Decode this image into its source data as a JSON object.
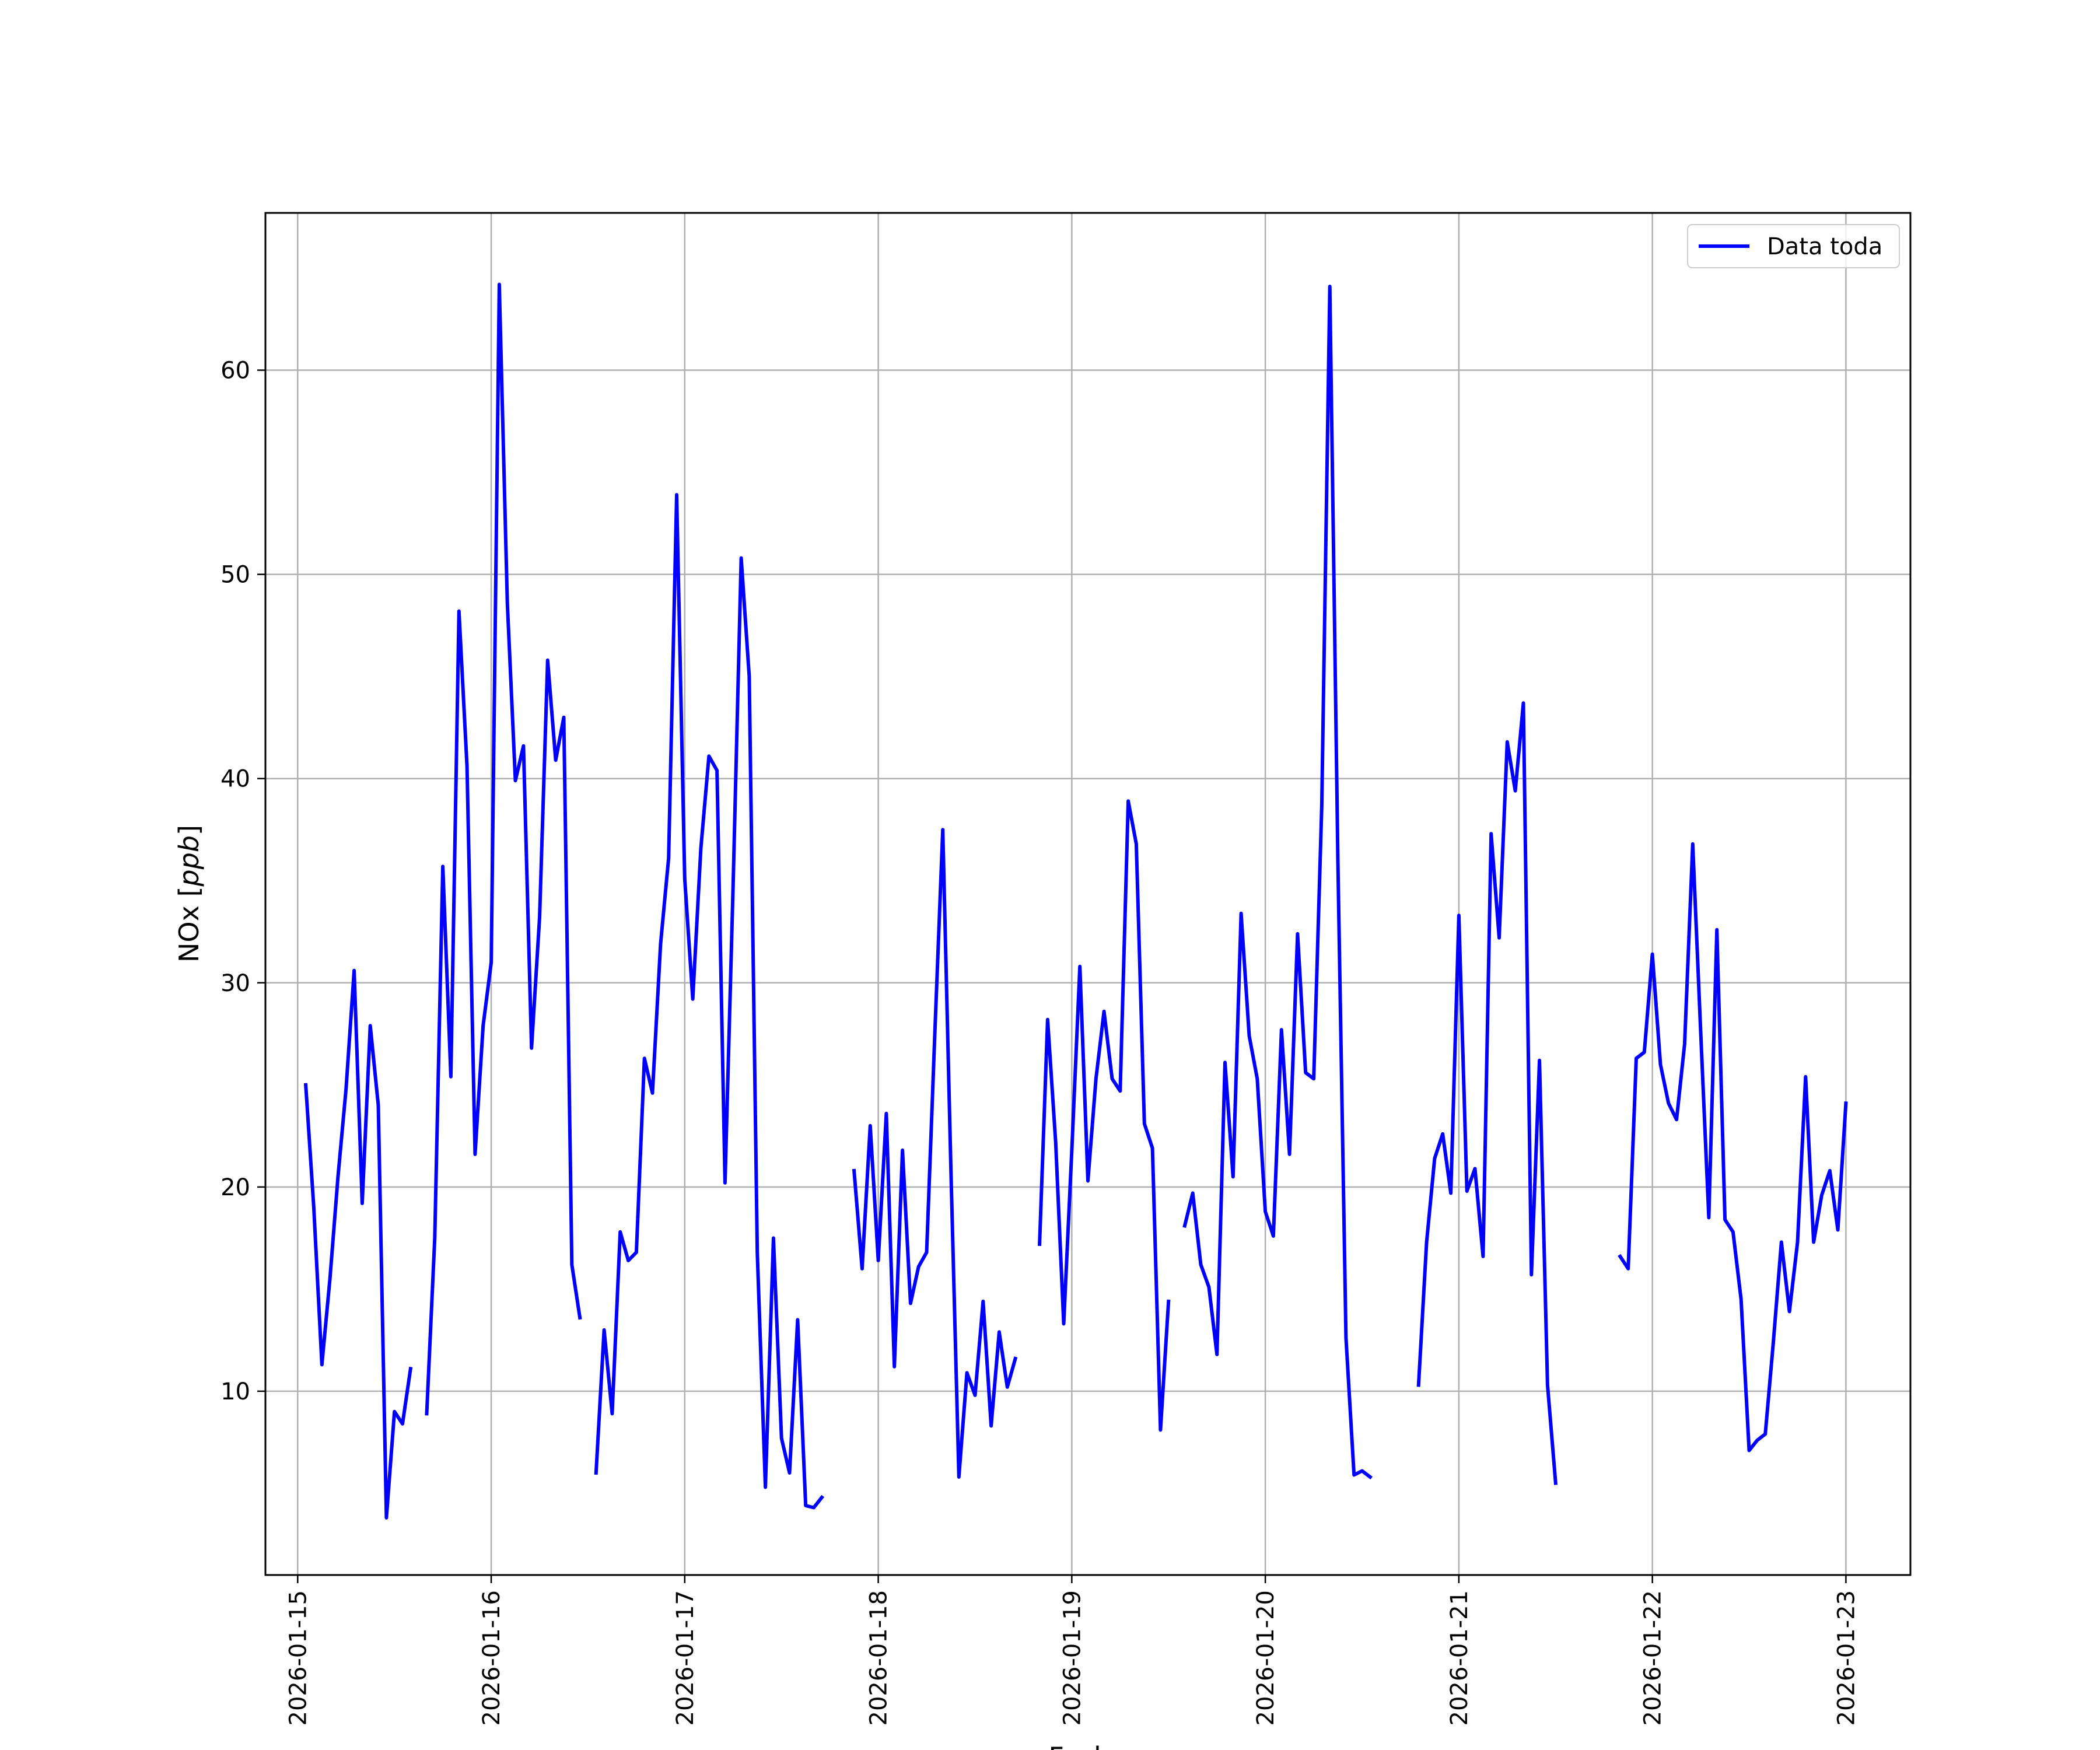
{
  "chart_data": {
    "type": "line",
    "xlabel": "Fecha",
    "ylabel_prefix": "NOx [",
    "ylabel_unit": "ppb",
    "ylabel_suffix": "]",
    "x_tick_labels": [
      "2026-01-15",
      "2026-01-16",
      "2026-01-17",
      "2026-01-18",
      "2026-01-19",
      "2026-01-20",
      "2026-01-21",
      "2026-01-22",
      "2026-01-23"
    ],
    "y_ticks": [
      10,
      20,
      30,
      40,
      50,
      60
    ],
    "xlim": [
      "2026-01-14 20:00",
      "2026-01-23 08:00"
    ],
    "ylim": [
      1.0,
      67.7
    ],
    "grid": true,
    "legend_position": "top-right",
    "colors": {
      "series": "#0000ff",
      "grid": "#b0b0b0",
      "axes": "#000000"
    },
    "series": [
      {
        "name": "Data toda",
        "points": [
          [
            "2026-01-15 01:00",
            25.0
          ],
          [
            "2026-01-15 02:00",
            19.0
          ],
          [
            "2026-01-15 03:00",
            11.3
          ],
          [
            "2026-01-15 04:00",
            15.5
          ],
          [
            "2026-01-15 05:00",
            20.5
          ],
          [
            "2026-01-15 06:00",
            24.8
          ],
          [
            "2026-01-15 07:00",
            30.6
          ],
          [
            "2026-01-15 08:00",
            19.2
          ],
          [
            "2026-01-15 09:00",
            27.9
          ],
          [
            "2026-01-15 10:00",
            24.0
          ],
          [
            "2026-01-15 11:00",
            3.8
          ],
          [
            "2026-01-15 12:00",
            9.0
          ],
          [
            "2026-01-15 13:00",
            8.4
          ],
          [
            "2026-01-15 14:00",
            11.1
          ],
          [
            "2026-01-15 15:00",
            null
          ],
          [
            "2026-01-15 16:00",
            8.9
          ],
          [
            "2026-01-15 17:00",
            17.5
          ],
          [
            "2026-01-15 18:00",
            35.7
          ],
          [
            "2026-01-15 19:00",
            25.4
          ],
          [
            "2026-01-15 20:00",
            48.2
          ],
          [
            "2026-01-15 21:00",
            40.6
          ],
          [
            "2026-01-15 22:00",
            21.6
          ],
          [
            "2026-01-15 23:00",
            27.9
          ],
          [
            "2026-01-16 00:00",
            31.0
          ],
          [
            "2026-01-16 01:00",
            64.2
          ],
          [
            "2026-01-16 02:00",
            48.6
          ],
          [
            "2026-01-16 03:00",
            39.9
          ],
          [
            "2026-01-16 04:00",
            41.6
          ],
          [
            "2026-01-16 05:00",
            26.8
          ],
          [
            "2026-01-16 06:00",
            33.2
          ],
          [
            "2026-01-16 07:00",
            45.8
          ],
          [
            "2026-01-16 08:00",
            40.9
          ],
          [
            "2026-01-16 09:00",
            43.0
          ],
          [
            "2026-01-16 10:00",
            16.2
          ],
          [
            "2026-01-16 11:00",
            13.6
          ],
          [
            "2026-01-16 12:00",
            null
          ],
          [
            "2026-01-16 13:00",
            6.0
          ],
          [
            "2026-01-16 14:00",
            13.0
          ],
          [
            "2026-01-16 15:00",
            8.9
          ],
          [
            "2026-01-16 16:00",
            17.8
          ],
          [
            "2026-01-16 17:00",
            16.4
          ],
          [
            "2026-01-16 18:00",
            16.8
          ],
          [
            "2026-01-16 19:00",
            26.3
          ],
          [
            "2026-01-16 20:00",
            24.6
          ],
          [
            "2026-01-16 21:00",
            31.9
          ],
          [
            "2026-01-16 22:00",
            36.1
          ],
          [
            "2026-01-16 23:00",
            53.9
          ],
          [
            "2026-01-17 00:00",
            35.1
          ],
          [
            "2026-01-17 01:00",
            29.2
          ],
          [
            "2026-01-17 02:00",
            36.6
          ],
          [
            "2026-01-17 03:00",
            41.1
          ],
          [
            "2026-01-17 04:00",
            40.4
          ],
          [
            "2026-01-17 05:00",
            20.2
          ],
          [
            "2026-01-17 06:00",
            34.8
          ],
          [
            "2026-01-17 07:00",
            50.8
          ],
          [
            "2026-01-17 08:00",
            45.0
          ],
          [
            "2026-01-17 09:00",
            16.8
          ],
          [
            "2026-01-17 10:00",
            5.3
          ],
          [
            "2026-01-17 11:00",
            17.5
          ],
          [
            "2026-01-17 12:00",
            7.7
          ],
          [
            "2026-01-17 13:00",
            6.0
          ],
          [
            "2026-01-17 14:00",
            13.5
          ],
          [
            "2026-01-17 15:00",
            4.4
          ],
          [
            "2026-01-17 16:00",
            4.3
          ],
          [
            "2026-01-17 17:00",
            4.8
          ],
          [
            "2026-01-17 18:00",
            null
          ],
          [
            "2026-01-17 19:00",
            null
          ],
          [
            "2026-01-17 20:00",
            null
          ],
          [
            "2026-01-17 21:00",
            20.8
          ],
          [
            "2026-01-17 22:00",
            16.0
          ],
          [
            "2026-01-17 23:00",
            23.0
          ],
          [
            "2026-01-18 00:00",
            16.4
          ],
          [
            "2026-01-18 01:00",
            23.6
          ],
          [
            "2026-01-18 02:00",
            11.2
          ],
          [
            "2026-01-18 03:00",
            21.8
          ],
          [
            "2026-01-18 04:00",
            14.3
          ],
          [
            "2026-01-18 05:00",
            16.1
          ],
          [
            "2026-01-18 06:00",
            16.8
          ],
          [
            "2026-01-18 07:00",
            27.4
          ],
          [
            "2026-01-18 08:00",
            37.5
          ],
          [
            "2026-01-18 09:00",
            21.0
          ],
          [
            "2026-01-18 10:00",
            5.8
          ],
          [
            "2026-01-18 11:00",
            10.9
          ],
          [
            "2026-01-18 12:00",
            9.8
          ],
          [
            "2026-01-18 13:00",
            14.4
          ],
          [
            "2026-01-18 14:00",
            8.3
          ],
          [
            "2026-01-18 15:00",
            12.9
          ],
          [
            "2026-01-18 16:00",
            10.2
          ],
          [
            "2026-01-18 17:00",
            11.6
          ],
          [
            "2026-01-18 18:00",
            null
          ],
          [
            "2026-01-18 19:00",
            null
          ],
          [
            "2026-01-18 20:00",
            17.2
          ],
          [
            "2026-01-18 21:00",
            28.2
          ],
          [
            "2026-01-18 22:00",
            22.2
          ],
          [
            "2026-01-18 23:00",
            13.3
          ],
          [
            "2026-01-19 00:00",
            21.8
          ],
          [
            "2026-01-19 01:00",
            30.8
          ],
          [
            "2026-01-19 02:00",
            20.3
          ],
          [
            "2026-01-19 03:00",
            25.3
          ],
          [
            "2026-01-19 04:00",
            28.6
          ],
          [
            "2026-01-19 05:00",
            25.3
          ],
          [
            "2026-01-19 06:00",
            24.7
          ],
          [
            "2026-01-19 07:00",
            38.9
          ],
          [
            "2026-01-19 08:00",
            36.8
          ],
          [
            "2026-01-19 09:00",
            23.1
          ],
          [
            "2026-01-19 10:00",
            21.9
          ],
          [
            "2026-01-19 11:00",
            8.1
          ],
          [
            "2026-01-19 12:00",
            14.4
          ],
          [
            "2026-01-19 13:00",
            null
          ],
          [
            "2026-01-19 14:00",
            18.1
          ],
          [
            "2026-01-19 15:00",
            19.7
          ],
          [
            "2026-01-19 16:00",
            16.2
          ],
          [
            "2026-01-19 17:00",
            15.1
          ],
          [
            "2026-01-19 18:00",
            11.8
          ],
          [
            "2026-01-19 19:00",
            26.1
          ],
          [
            "2026-01-19 20:00",
            20.5
          ],
          [
            "2026-01-19 21:00",
            33.4
          ],
          [
            "2026-01-19 22:00",
            27.4
          ],
          [
            "2026-01-19 23:00",
            25.3
          ],
          [
            "2026-01-20 00:00",
            18.8
          ],
          [
            "2026-01-20 01:00",
            17.6
          ],
          [
            "2026-01-20 02:00",
            27.7
          ],
          [
            "2026-01-20 03:00",
            21.6
          ],
          [
            "2026-01-20 04:00",
            32.4
          ],
          [
            "2026-01-20 05:00",
            25.6
          ],
          [
            "2026-01-20 06:00",
            25.3
          ],
          [
            "2026-01-20 07:00",
            38.7
          ],
          [
            "2026-01-20 08:00",
            64.1
          ],
          [
            "2026-01-20 09:00",
            36.0
          ],
          [
            "2026-01-20 10:00",
            12.6
          ],
          [
            "2026-01-20 11:00",
            5.9
          ],
          [
            "2026-01-20 12:00",
            6.1
          ],
          [
            "2026-01-20 13:00",
            5.8
          ],
          [
            "2026-01-20 14:00",
            null
          ],
          [
            "2026-01-20 15:00",
            null
          ],
          [
            "2026-01-20 16:00",
            null
          ],
          [
            "2026-01-20 17:00",
            null
          ],
          [
            "2026-01-20 18:00",
            null
          ],
          [
            "2026-01-20 19:00",
            10.3
          ],
          [
            "2026-01-20 20:00",
            17.3
          ],
          [
            "2026-01-20 21:00",
            21.4
          ],
          [
            "2026-01-20 22:00",
            22.6
          ],
          [
            "2026-01-20 23:00",
            19.7
          ],
          [
            "2026-01-21 00:00",
            33.3
          ],
          [
            "2026-01-21 01:00",
            19.8
          ],
          [
            "2026-01-21 02:00",
            20.9
          ],
          [
            "2026-01-21 03:00",
            16.6
          ],
          [
            "2026-01-21 04:00",
            37.3
          ],
          [
            "2026-01-21 05:00",
            32.2
          ],
          [
            "2026-01-21 06:00",
            41.8
          ],
          [
            "2026-01-21 07:00",
            39.4
          ],
          [
            "2026-01-21 08:00",
            43.7
          ],
          [
            "2026-01-21 09:00",
            15.7
          ],
          [
            "2026-01-21 10:00",
            26.2
          ],
          [
            "2026-01-21 11:00",
            10.3
          ],
          [
            "2026-01-21 12:00",
            5.5
          ],
          [
            "2026-01-21 13:00",
            null
          ],
          [
            "2026-01-21 14:00",
            null
          ],
          [
            "2026-01-21 15:00",
            null
          ],
          [
            "2026-01-21 16:00",
            null
          ],
          [
            "2026-01-21 17:00",
            null
          ],
          [
            "2026-01-21 18:00",
            null
          ],
          [
            "2026-01-21 19:00",
            null
          ],
          [
            "2026-01-21 20:00",
            16.6
          ],
          [
            "2026-01-21 21:00",
            16.0
          ],
          [
            "2026-01-21 22:00",
            26.3
          ],
          [
            "2026-01-21 23:00",
            26.6
          ],
          [
            "2026-01-22 00:00",
            31.4
          ],
          [
            "2026-01-22 01:00",
            26.0
          ],
          [
            "2026-01-22 02:00",
            24.1
          ],
          [
            "2026-01-22 03:00",
            23.3
          ],
          [
            "2026-01-22 04:00",
            27.0
          ],
          [
            "2026-01-22 05:00",
            36.8
          ],
          [
            "2026-01-22 06:00",
            27.5
          ],
          [
            "2026-01-22 07:00",
            18.5
          ],
          [
            "2026-01-22 08:00",
            32.6
          ],
          [
            "2026-01-22 09:00",
            18.4
          ],
          [
            "2026-01-22 10:00",
            17.8
          ],
          [
            "2026-01-22 11:00",
            14.5
          ],
          [
            "2026-01-22 12:00",
            7.1
          ],
          [
            "2026-01-22 13:00",
            7.6
          ],
          [
            "2026-01-22 14:00",
            7.9
          ],
          [
            "2026-01-22 15:00",
            12.4
          ],
          [
            "2026-01-22 16:00",
            17.3
          ],
          [
            "2026-01-22 17:00",
            13.9
          ],
          [
            "2026-01-22 18:00",
            17.3
          ],
          [
            "2026-01-22 19:00",
            25.4
          ],
          [
            "2026-01-22 20:00",
            17.3
          ],
          [
            "2026-01-22 21:00",
            19.6
          ],
          [
            "2026-01-22 22:00",
            20.8
          ],
          [
            "2026-01-22 23:00",
            17.9
          ],
          [
            "2026-01-23 00:00",
            24.1
          ]
        ]
      }
    ]
  }
}
